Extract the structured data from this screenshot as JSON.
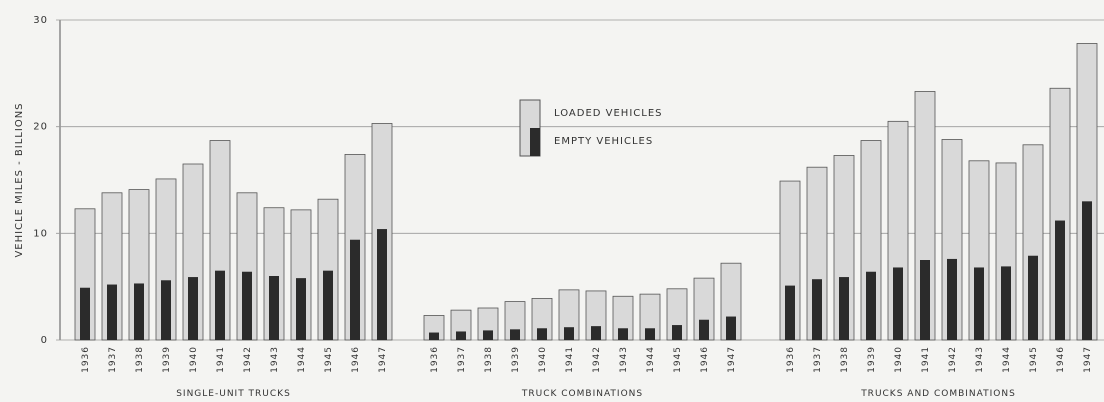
{
  "chart_data": {
    "type": "bar",
    "ylabel": "VEHICLE MILES - BILLIONS",
    "ylim": [
      0,
      30
    ],
    "yticks": [
      0,
      10,
      20,
      30
    ],
    "grid": true,
    "legend": "center",
    "series": [
      {
        "name": "LOADED VEHICLES",
        "color": "#d9d9d9"
      },
      {
        "name": "EMPTY VEHICLES",
        "color": "#2b2b2b"
      }
    ],
    "groups": [
      {
        "name": "SINGLE-UNIT TRUCKS",
        "categories": [
          "1936",
          "1937",
          "1938",
          "1939",
          "1940",
          "1941",
          "1942",
          "1943",
          "1944",
          "1945",
          "1946",
          "1947"
        ],
        "series": [
          {
            "values": [
              12.3,
              13.8,
              14.1,
              15.1,
              16.5,
              18.7,
              13.8,
              12.4,
              12.2,
              13.2,
              17.4,
              20.3
            ]
          },
          {
            "values": [
              4.9,
              5.2,
              5.3,
              5.6,
              5.9,
              6.5,
              6.4,
              6.0,
              5.8,
              6.5,
              9.4,
              10.4
            ]
          }
        ]
      },
      {
        "name": "TRUCK COMBINATIONS",
        "categories": [
          "1936",
          "1937",
          "1938",
          "1939",
          "1940",
          "1941",
          "1942",
          "1943",
          "1944",
          "1945",
          "1946",
          "1947"
        ],
        "series": [
          {
            "values": [
              2.3,
              2.8,
              3.0,
              3.6,
              3.9,
              4.7,
              4.6,
              4.1,
              4.3,
              4.8,
              5.8,
              7.2
            ]
          },
          {
            "values": [
              0.7,
              0.8,
              0.9,
              1.0,
              1.1,
              1.2,
              1.3,
              1.1,
              1.1,
              1.4,
              1.9,
              2.2
            ]
          }
        ]
      },
      {
        "name": "TRUCKS AND COMBINATIONS",
        "categories": [
          "1936",
          "1937",
          "1938",
          "1939",
          "1940",
          "1941",
          "1942",
          "1943",
          "1944",
          "1945",
          "1946",
          "1947"
        ],
        "series": [
          {
            "values": [
              14.9,
              16.2,
              17.3,
              18.7,
              20.5,
              23.3,
              18.8,
              16.8,
              16.6,
              18.3,
              23.6,
              27.8
            ]
          },
          {
            "values": [
              5.1,
              5.7,
              5.9,
              6.4,
              6.8,
              7.5,
              7.6,
              6.8,
              6.9,
              7.9,
              11.2,
              13.0
            ]
          }
        ]
      }
    ]
  }
}
